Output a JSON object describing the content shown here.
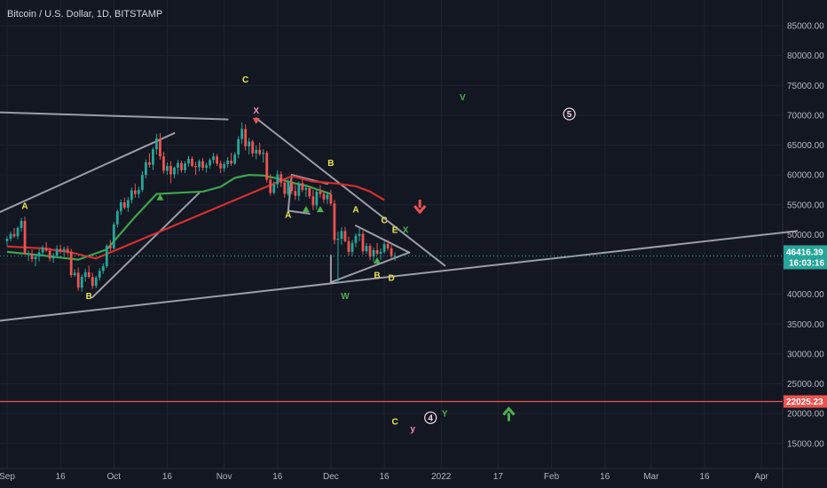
{
  "header": {
    "title": "Bitcoin / U.S. Dollar, 1D, BITSTAMP"
  },
  "colors": {
    "background": "#131722",
    "grid": "#1f2330",
    "up": "#26a69a",
    "down": "#ef5350",
    "trendline": "#b2b5be",
    "ma_green": "#3fa34d",
    "ma_red": "#d32f2f",
    "label_yellow": "#e8e54a",
    "label_pink": "#f48fb1",
    "label_green": "#4caf50",
    "price_badge": "#26a69a",
    "level_badge": "#ef5350"
  },
  "chart_data": {
    "type": "candlestick",
    "symbol": "Bitcoin / U.S. Dollar",
    "interval": "1D",
    "exchange": "BITSTAMP",
    "ylim": [
      12000,
      88000
    ],
    "y_ticks": [
      "85000.00",
      "80000.00",
      "75000.00",
      "70000.00",
      "65000.00",
      "60000.00",
      "55000.00",
      "50000.00",
      "45000.00",
      "40000.00",
      "35000.00",
      "30000.00",
      "25000.00",
      "20000.00",
      "15000.00"
    ],
    "y_tick_values": [
      85000,
      80000,
      75000,
      70000,
      65000,
      60000,
      55000,
      50000,
      45000,
      40000,
      35000,
      30000,
      25000,
      20000,
      15000
    ],
    "x_ticks": [
      "Sep",
      "16",
      "Oct",
      "16",
      "Nov",
      "16",
      "Dec",
      "16",
      "2022",
      "17",
      "Feb",
      "16",
      "Mar",
      "16",
      "Apr"
    ],
    "x_tick_days": [
      0,
      15,
      30,
      45,
      61,
      76,
      91,
      106,
      122,
      138,
      153,
      168,
      181,
      196,
      212
    ],
    "current_price": {
      "label": "46416.39",
      "countdown": "16:03:16",
      "value": 46416.39
    },
    "horizontal_level": {
      "label": "22025.23",
      "value": 22025.23
    },
    "candles": [
      [
        0,
        48900,
        49700,
        48100,
        49300
      ],
      [
        1,
        49300,
        50500,
        48900,
        50100
      ],
      [
        2,
        50100,
        51100,
        49400,
        49700
      ],
      [
        3,
        49700,
        51400,
        49200,
        51100
      ],
      [
        4,
        51100,
        52800,
        50500,
        52300
      ],
      [
        5,
        52300,
        53000,
        47000,
        46700
      ],
      [
        6,
        46700,
        47300,
        45600,
        46800
      ],
      [
        7,
        46800,
        47500,
        45400,
        45900
      ],
      [
        8,
        45900,
        46800,
        44700,
        46300
      ],
      [
        9,
        46300,
        47600,
        45500,
        47000
      ],
      [
        10,
        47000,
        48200,
        46400,
        47800
      ],
      [
        11,
        47800,
        48700,
        47100,
        47300
      ],
      [
        12,
        47300,
        47800,
        45500,
        46000
      ],
      [
        13,
        46000,
        46900,
        45300,
        46500
      ],
      [
        14,
        46500,
        48200,
        46100,
        47600
      ],
      [
        15,
        47600,
        48300,
        46800,
        47200
      ],
      [
        16,
        47200,
        48000,
        46400,
        47600
      ],
      [
        17,
        47600,
        48100,
        46600,
        47100
      ],
      [
        18,
        47100,
        47600,
        42800,
        43200
      ],
      [
        19,
        43200,
        44200,
        42900,
        43600
      ],
      [
        20,
        43600,
        44500,
        40600,
        41100
      ],
      [
        21,
        41100,
        43300,
        40400,
        42900
      ],
      [
        22,
        42900,
        44300,
        42100,
        43700
      ],
      [
        23,
        43700,
        44800,
        42600,
        42900
      ],
      [
        24,
        42900,
        43600,
        40900,
        41400
      ],
      [
        25,
        41400,
        43100,
        41000,
        42800
      ],
      [
        26,
        42800,
        44400,
        42300,
        43900
      ],
      [
        27,
        43900,
        45200,
        43400,
        44700
      ],
      [
        28,
        44700,
        48400,
        44400,
        48100
      ],
      [
        29,
        48100,
        49100,
        47200,
        47700
      ],
      [
        30,
        47700,
        52100,
        47500,
        51700
      ],
      [
        31,
        51700,
        54200,
        51200,
        53900
      ],
      [
        32,
        53900,
        55900,
        53300,
        55400
      ],
      [
        33,
        55400,
        56200,
        54200,
        54500
      ],
      [
        34,
        54500,
        56300,
        53800,
        55800
      ],
      [
        35,
        55800,
        57900,
        55200,
        57400
      ],
      [
        36,
        57400,
        58500,
        56200,
        56800
      ],
      [
        37,
        56800,
        58000,
        56100,
        57500
      ],
      [
        38,
        57500,
        60600,
        57100,
        60000
      ],
      [
        39,
        60000,
        62600,
        59400,
        62100
      ],
      [
        40,
        62100,
        63600,
        61200,
        61700
      ],
      [
        41,
        61700,
        64600,
        60800,
        64300
      ],
      [
        42,
        64300,
        66900,
        63400,
        66100
      ],
      [
        43,
        66100,
        67000,
        62500,
        63100
      ],
      [
        44,
        63100,
        63900,
        60200,
        60700
      ],
      [
        45,
        60700,
        62100,
        60000,
        61500
      ],
      [
        46,
        61500,
        62300,
        58600,
        60100
      ],
      [
        47,
        60100,
        61400,
        59400,
        61200
      ],
      [
        48,
        61200,
        62500,
        60100,
        62000
      ],
      [
        49,
        62000,
        62400,
        60400,
        60800
      ],
      [
        50,
        60800,
        62300,
        60300,
        61900
      ],
      [
        51,
        61900,
        63200,
        61400,
        62700
      ],
      [
        52,
        62700,
        63100,
        61300,
        61500
      ],
      [
        53,
        61500,
        62200,
        60000,
        61300
      ],
      [
        54,
        61300,
        62600,
        60600,
        62300
      ],
      [
        55,
        62300,
        62800,
        60700,
        61200
      ],
      [
        56,
        61200,
        62100,
        60400,
        61600
      ],
      [
        57,
        61600,
        62800,
        61100,
        62500
      ],
      [
        58,
        62500,
        63700,
        61900,
        63100
      ],
      [
        59,
        63100,
        63500,
        61500,
        61900
      ],
      [
        60,
        61900,
        62400,
        60300,
        61100
      ],
      [
        61,
        61100,
        62200,
        60500,
        61800
      ],
      [
        62,
        61800,
        63000,
        61200,
        62400
      ],
      [
        63,
        62400,
        63700,
        61500,
        61900
      ],
      [
        64,
        61900,
        63800,
        61700,
        63400
      ],
      [
        65,
        63400,
        66500,
        62800,
        66000
      ],
      [
        66,
        66000,
        68800,
        65200,
        67700
      ],
      [
        67,
        67700,
        68500,
        64100,
        64800
      ],
      [
        68,
        64800,
        66200,
        63400,
        65600
      ],
      [
        69,
        65600,
        65900,
        63000,
        63600
      ],
      [
        70,
        63600,
        64900,
        62600,
        64200
      ],
      [
        71,
        64200,
        65400,
        63200,
        63500
      ],
      [
        72,
        63500,
        64300,
        62100,
        63700
      ],
      [
        73,
        63700,
        64000,
        58700,
        59200
      ],
      [
        74,
        59200,
        60100,
        56500,
        57000
      ],
      [
        75,
        57000,
        58900,
        56700,
        58400
      ],
      [
        76,
        58400,
        60800,
        57800,
        60100
      ],
      [
        77,
        60100,
        60600,
        58000,
        58700
      ],
      [
        78,
        58700,
        59400,
        56200,
        56800
      ],
      [
        79,
        56800,
        59300,
        56500,
        58900
      ],
      [
        80,
        58900,
        59500,
        56800,
        57300
      ],
      [
        81,
        57300,
        58300,
        55800,
        56500
      ],
      [
        82,
        56500,
        58900,
        55700,
        58600
      ],
      [
        83,
        58600,
        59300,
        57100,
        57500
      ],
      [
        84,
        57500,
        58400,
        56300,
        57800
      ],
      [
        85,
        57800,
        58200,
        56000,
        56400
      ],
      [
        86,
        56400,
        57500,
        54100,
        54900
      ],
      [
        87,
        54900,
        57600,
        54200,
        57200
      ],
      [
        88,
        57200,
        58300,
        56200,
        56800
      ],
      [
        89,
        56800,
        57400,
        55300,
        55900
      ],
      [
        90,
        55900,
        57200,
        55100,
        56700
      ],
      [
        91,
        56700,
        57500,
        54800,
        55200
      ],
      [
        92,
        55200,
        55800,
        48400,
        49100
      ],
      [
        93,
        49100,
        50500,
        42000,
        49300
      ],
      [
        94,
        49300,
        51200,
        48300,
        50600
      ],
      [
        95,
        50600,
        51300,
        48700,
        48900
      ],
      [
        96,
        48900,
        49700,
        46500,
        47100
      ],
      [
        97,
        47100,
        49100,
        46400,
        48600
      ],
      [
        98,
        48600,
        50200,
        47900,
        49800
      ],
      [
        99,
        49800,
        51000,
        48900,
        50100
      ],
      [
        100,
        50100,
        50600,
        46700,
        47200
      ],
      [
        101,
        47200,
        48600,
        46800,
        48100
      ],
      [
        102,
        48100,
        48500,
        45700,
        46300
      ],
      [
        103,
        46300,
        47800,
        45400,
        47400
      ],
      [
        104,
        47400,
        48600,
        46500,
        46800
      ],
      [
        105,
        46800,
        47700,
        45800,
        47100
      ],
      [
        106,
        47100,
        49000,
        46800,
        48400
      ],
      [
        107,
        48400,
        49100,
        47300,
        47700
      ],
      [
        108,
        47700,
        48200,
        46000,
        46400
      ],
      [
        109,
        46400,
        47000,
        45600,
        46416
      ]
    ],
    "moving_averages": [
      {
        "color": "green",
        "points": [
          [
            0,
            47100
          ],
          [
            10,
            46500
          ],
          [
            20,
            45800
          ],
          [
            28,
            47500
          ],
          [
            36,
            53000
          ],
          [
            42,
            56800
          ],
          [
            48,
            57000
          ],
          [
            55,
            57200
          ],
          [
            60,
            58000
          ],
          [
            64,
            59500
          ],
          [
            68,
            60000
          ],
          [
            72,
            59900
          ],
          [
            76,
            59400
          ],
          [
            80,
            58700
          ],
          [
            84,
            58200
          ],
          [
            88,
            57400
          ],
          [
            91,
            56800
          ]
        ]
      },
      {
        "color": "red",
        "points": [
          [
            0,
            48000
          ],
          [
            10,
            47700
          ],
          [
            18,
            47000
          ],
          [
            22,
            46400
          ],
          [
            25,
            46000
          ],
          [
            80,
            59800
          ],
          [
            86,
            58900
          ],
          [
            92,
            58600
          ],
          [
            98,
            58100
          ],
          [
            102,
            57200
          ],
          [
            106,
            55800
          ]
        ]
      }
    ],
    "trendlines": [
      [
        [
          -3,
          70500
        ],
        [
          62,
          69300
        ]
      ],
      [
        [
          -3,
          53500
        ],
        [
          47,
          67000
        ]
      ],
      [
        [
          24,
          39500
        ],
        [
          54,
          57000
        ]
      ],
      [
        [
          -3,
          35500
        ],
        [
          222,
          50600
        ]
      ],
      [
        [
          70,
          69500
        ],
        [
          123,
          44800
        ]
      ],
      [
        [
          79,
          54000
        ],
        [
          85,
          53500
        ]
      ],
      [
        [
          79,
          54000
        ],
        [
          80,
          60000
        ]
      ],
      [
        [
          80,
          60000
        ],
        [
          90,
          58500
        ]
      ],
      [
        [
          91,
          42000
        ],
        [
          113,
          47000
        ]
      ],
      [
        [
          98,
          51500
        ],
        [
          113,
          47000
        ]
      ],
      [
        [
          91,
          42000
        ],
        [
          91,
          46500
        ]
      ]
    ],
    "annotations": [
      {
        "day": 5,
        "y": 54800,
        "text": "A",
        "color": "yellow"
      },
      {
        "day": 23,
        "y": 39700,
        "text": "B",
        "color": "yellow"
      },
      {
        "day": 67,
        "y": 76000,
        "text": "C",
        "color": "yellow"
      },
      {
        "day": 70,
        "y": 70800,
        "text": "X",
        "color": "pink"
      },
      {
        "day": 79,
        "y": 53300,
        "text": "A",
        "color": "yellow"
      },
      {
        "day": 91,
        "y": 62000,
        "text": "B",
        "color": "yellow"
      },
      {
        "day": 98,
        "y": 54200,
        "text": "A",
        "color": "yellow"
      },
      {
        "day": 106,
        "y": 52400,
        "text": "C",
        "color": "yellow"
      },
      {
        "day": 109,
        "y": 50800,
        "text": "E",
        "color": "yellow"
      },
      {
        "day": 112,
        "y": 50800,
        "text": "X",
        "color": "green"
      },
      {
        "day": 95,
        "y": 39700,
        "text": "W",
        "color": "green"
      },
      {
        "day": 104,
        "y": 43200,
        "text": "B",
        "color": "yellow"
      },
      {
        "day": 108,
        "y": 42800,
        "text": "D",
        "color": "yellow"
      },
      {
        "day": 128,
        "y": 73000,
        "text": "V",
        "color": "green"
      },
      {
        "day": 109,
        "y": 18700,
        "text": "C",
        "color": "yellow"
      },
      {
        "day": 114,
        "y": 17500,
        "text": "y",
        "color": "pink"
      },
      {
        "day": 123,
        "y": 20000,
        "text": "Y",
        "color": "green"
      }
    ],
    "circled_labels": [
      {
        "day": 158,
        "y": 70200,
        "text": "5"
      },
      {
        "day": 119,
        "y": 19300,
        "text": "4"
      }
    ],
    "triangle_markers": [
      {
        "day": 43,
        "y": 56200,
        "color": "green",
        "dir": "up"
      },
      {
        "day": 84,
        "y": 54200,
        "color": "green",
        "dir": "up"
      },
      {
        "day": 88,
        "y": 54200,
        "color": "green",
        "dir": "up"
      },
      {
        "day": 104,
        "y": 45600,
        "color": "green",
        "dir": "up"
      },
      {
        "day": 70,
        "y": 69100,
        "color": "red",
        "dir": "down"
      }
    ],
    "arrows": [
      {
        "day": 116,
        "y": 54800,
        "color": "red",
        "dir": "down"
      },
      {
        "day": 141,
        "y": 19800,
        "color": "green",
        "dir": "up"
      }
    ]
  }
}
